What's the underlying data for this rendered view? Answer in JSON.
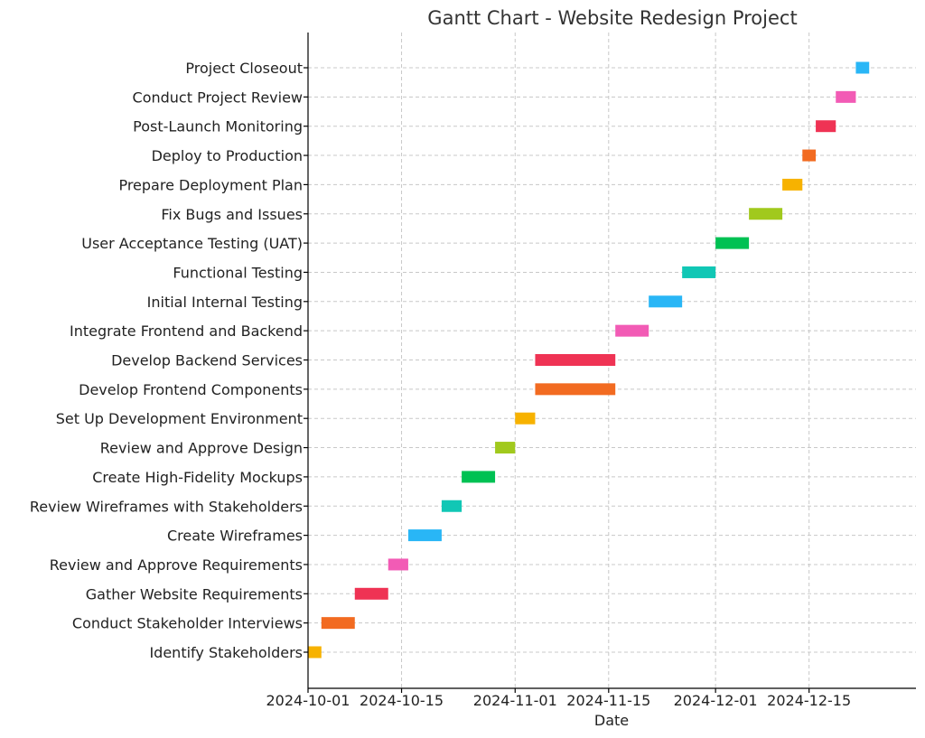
{
  "chart_data": {
    "type": "gantt",
    "title": "Gantt Chart - Website Redesign Project",
    "xlabel": "Date",
    "ylabel": "",
    "xlim": [
      "2024-10-01",
      "2024-12-31"
    ],
    "x_ticks": [
      "2024-10-01",
      "2024-10-15",
      "2024-11-01",
      "2024-11-15",
      "2024-12-01",
      "2024-12-15"
    ],
    "grid": true,
    "tasks": [
      {
        "name": "Identify Stakeholders",
        "start": "2024-10-01",
        "end": "2024-10-02",
        "color": "#f7b200"
      },
      {
        "name": "Conduct Stakeholder Interviews",
        "start": "2024-10-03",
        "end": "2024-10-07",
        "color": "#f26b21"
      },
      {
        "name": "Gather Website Requirements",
        "start": "2024-10-08",
        "end": "2024-10-12",
        "color": "#ef3354"
      },
      {
        "name": "Review and Approve Requirements",
        "start": "2024-10-13",
        "end": "2024-10-15",
        "color": "#f25bb5"
      },
      {
        "name": "Create Wireframes",
        "start": "2024-10-16",
        "end": "2024-10-20",
        "color": "#29b6f6"
      },
      {
        "name": "Review Wireframes with Stakeholders",
        "start": "2024-10-21",
        "end": "2024-10-23",
        "color": "#11c7b5"
      },
      {
        "name": "Create High-Fidelity Mockups",
        "start": "2024-10-24",
        "end": "2024-10-28",
        "color": "#00c153"
      },
      {
        "name": "Review and Approve Design",
        "start": "2024-10-29",
        "end": "2024-10-31",
        "color": "#a1c91d"
      },
      {
        "name": "Set Up Development Environment",
        "start": "2024-11-01",
        "end": "2024-11-03",
        "color": "#f7b200"
      },
      {
        "name": "Develop Frontend Components",
        "start": "2024-11-04",
        "end": "2024-11-15",
        "color": "#f26b21"
      },
      {
        "name": "Develop Backend Services",
        "start": "2024-11-04",
        "end": "2024-11-15",
        "color": "#ef3354"
      },
      {
        "name": "Integrate Frontend and Backend",
        "start": "2024-11-16",
        "end": "2024-11-20",
        "color": "#f25bb5"
      },
      {
        "name": "Initial Internal Testing",
        "start": "2024-11-21",
        "end": "2024-11-25",
        "color": "#29b6f6"
      },
      {
        "name": "Functional Testing",
        "start": "2024-11-26",
        "end": "2024-11-30",
        "color": "#11c7b5"
      },
      {
        "name": "User Acceptance Testing (UAT)",
        "start": "2024-12-01",
        "end": "2024-12-05",
        "color": "#00c153"
      },
      {
        "name": "Fix Bugs and Issues",
        "start": "2024-12-06",
        "end": "2024-12-10",
        "color": "#a1c91d"
      },
      {
        "name": "Prepare Deployment Plan",
        "start": "2024-12-11",
        "end": "2024-12-13",
        "color": "#f7b200"
      },
      {
        "name": "Deploy to Production",
        "start": "2024-12-14",
        "end": "2024-12-15",
        "color": "#f26b21"
      },
      {
        "name": "Post-Launch Monitoring",
        "start": "2024-12-16",
        "end": "2024-12-18",
        "color": "#ef3354"
      },
      {
        "name": "Conduct Project Review",
        "start": "2024-12-19",
        "end": "2024-12-21",
        "color": "#f25bb5"
      },
      {
        "name": "Project Closeout",
        "start": "2024-12-22",
        "end": "2024-12-23",
        "color": "#29b6f6"
      }
    ]
  }
}
